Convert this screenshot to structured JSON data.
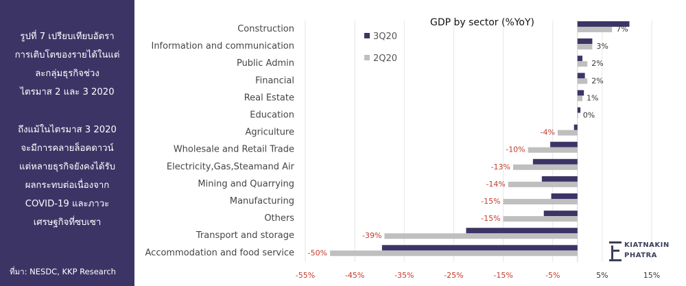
{
  "side_panel": {
    "heading_lines": [
      "รูปที่ 7 เปรียบเทียบอัตรา",
      "การเติบโตของรายได้ในแต่",
      "ละกลุ่มธุรกิจช่วง",
      "ไตรมาส 2 และ 3 2020"
    ],
    "body_lines": [
      "ถึงแม้ในไตรมาส 3 2020",
      "จะมีการคลายล็อคดาวน์",
      "แต่หลายธุรกิจยังคงได้รับ",
      "ผลกระทบต่อเนื่องจาก",
      "COVID-19 และภาวะ",
      "เศรษฐกิจที่ซบเซา"
    ],
    "source": "ที่มา: NESDC, KKP Research"
  },
  "logo": {
    "line1": "KIATNAKIN",
    "line2": "PHATRA"
  },
  "colors": {
    "panel": "#3d3466",
    "q3": "#3d3466",
    "q2": "#bfbfbf",
    "negative_label": "#c0392b",
    "positive_label": "#333333"
  },
  "chart_data": {
    "type": "bar",
    "orientation": "horizontal",
    "title": "GDP by sector (%YoY)",
    "categories": [
      "Construction",
      "Information and communication",
      "Public Admin",
      "Financial",
      "Real Estate",
      "Education",
      "Agriculture",
      "Wholesale and Retail Trade",
      "Electricity,Gas,Steamand Air",
      "Mining and Quarrying",
      "Manufacturing",
      "Others",
      "Transport and storage",
      "Accommodation and food service"
    ],
    "series": [
      {
        "name": "3Q20",
        "color": "#3d3466",
        "values": [
          10.5,
          3,
          1,
          1.5,
          1.3,
          0.6,
          -0.7,
          -5.5,
          -9,
          -7.2,
          -5.3,
          -6.8,
          -22.5,
          -39.5
        ]
      },
      {
        "name": "2Q20",
        "color": "#bfbfbf",
        "values": [
          7,
          3,
          2,
          2,
          1,
          0,
          -4,
          -10,
          -13,
          -14,
          -15,
          -15,
          -39,
          -50
        ]
      }
    ],
    "data_labels": [
      "7%",
      "3%",
      "2%",
      "2%",
      "1%",
      "0%",
      "-4%",
      "-10%",
      "-13%",
      "-14%",
      "-15%",
      "-15%",
      "-39%",
      "-50%"
    ],
    "x_ticks": [
      "-55%",
      "-45%",
      "-35%",
      "-25%",
      "-15%",
      "-5%",
      "5%",
      "15%"
    ],
    "x_tick_values": [
      -55,
      -45,
      -35,
      -25,
      -15,
      -5,
      5,
      15
    ],
    "xlim": [
      -55,
      15
    ],
    "grid": "vertical",
    "legend_position": "top-left inside plot"
  }
}
